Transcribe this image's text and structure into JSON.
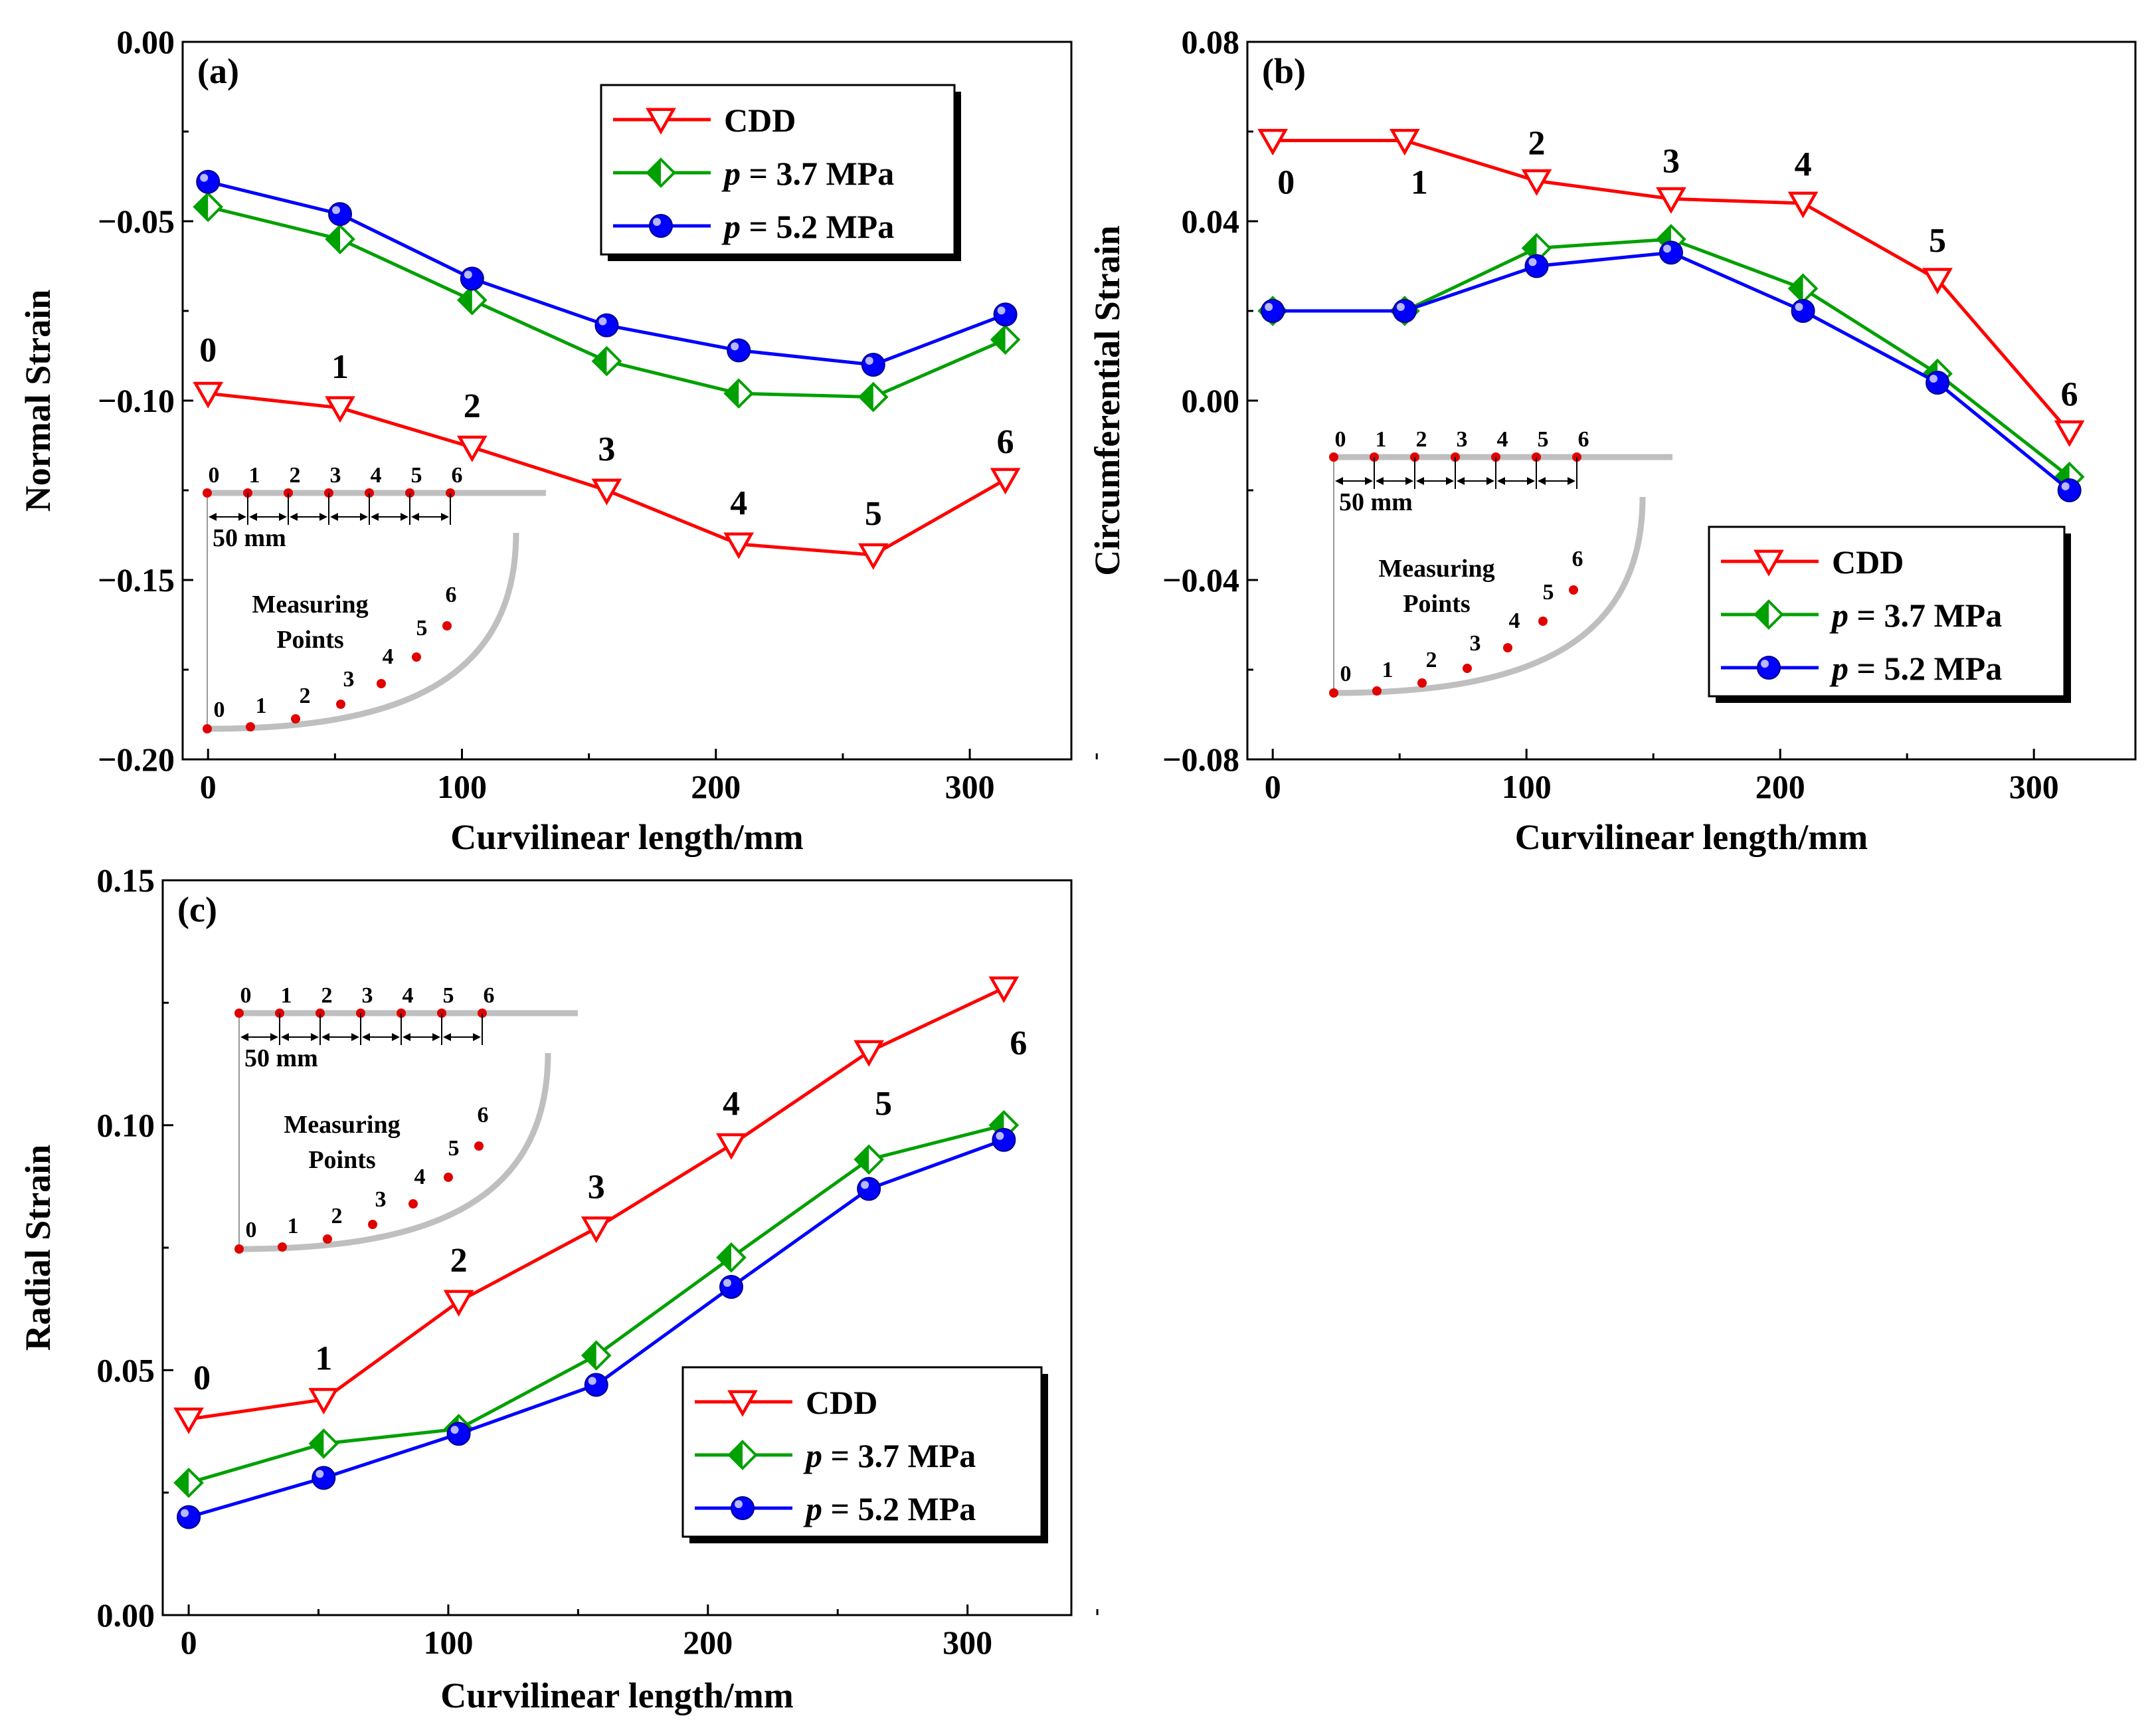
{
  "colors": {
    "cdd": "#ff0000",
    "p37": "#00a000",
    "p52": "#0000ff",
    "insetCurve": "#bfbfbf",
    "insetDot": "#e00000"
  },
  "chart_data": [
    {
      "type": "line",
      "panel": "(a)",
      "xlabel": "Curvilinear length/mm",
      "ylabel": "Normal Strain",
      "xlim": [
        -10,
        340
      ],
      "ylim": [
        -0.2,
        0.0
      ],
      "xticks": [
        0,
        100,
        200,
        300
      ],
      "xtick_labels": [
        "0",
        "100",
        "200",
        "300"
      ],
      "yticks": [
        -0.2,
        -0.15,
        -0.1,
        -0.05,
        0.0
      ],
      "ytick_labels": [
        "−0.20",
        "−0.15",
        "−0.10",
        "−0.05",
        "0.00"
      ],
      "legend_position": "top-right",
      "series": [
        {
          "name": "CDD",
          "key": "cdd",
          "marker": "triangle-down",
          "x": [
            0,
            52,
            104,
            157,
            209,
            262,
            314
          ],
          "y": [
            -0.098,
            -0.102,
            -0.113,
            -0.125,
            -0.14,
            -0.143,
            -0.122
          ]
        },
        {
          "name": "p = 3.7 MPa",
          "key": "p37",
          "marker": "diamond",
          "x": [
            0,
            52,
            104,
            157,
            209,
            262,
            314
          ],
          "y": [
            -0.046,
            -0.055,
            -0.072,
            -0.089,
            -0.098,
            -0.099,
            -0.083
          ]
        },
        {
          "name": "p = 5.2 MPa",
          "key": "p52",
          "marker": "circle",
          "x": [
            0,
            52,
            104,
            157,
            209,
            262,
            314
          ],
          "y": [
            -0.039,
            -0.048,
            -0.066,
            -0.079,
            -0.086,
            -0.09,
            -0.076
          ]
        }
      ],
      "point_labels": [
        "0",
        "1",
        "2",
        "3",
        "4",
        "5",
        "6"
      ]
    },
    {
      "type": "line",
      "panel": "(b)",
      "xlabel": "Curvilinear length/mm",
      "ylabel": "Circumferential Strain",
      "xlim": [
        -10,
        340
      ],
      "ylim": [
        -0.08,
        0.08
      ],
      "xticks": [
        0,
        100,
        200,
        300
      ],
      "xtick_labels": [
        "0",
        "100",
        "200",
        "300"
      ],
      "yticks": [
        -0.08,
        -0.04,
        0.0,
        0.04,
        0.08
      ],
      "ytick_labels": [
        "−0.08",
        "−0.04",
        "0.00",
        "0.04",
        "0.08"
      ],
      "legend_position": "bottom-right",
      "series": [
        {
          "name": "CDD",
          "key": "cdd",
          "marker": "triangle-down",
          "x": [
            0,
            52,
            104,
            157,
            209,
            262,
            314
          ],
          "y": [
            0.058,
            0.058,
            0.049,
            0.045,
            0.044,
            0.027,
            -0.007
          ]
        },
        {
          "name": "p = 3.7 MPa",
          "key": "p37",
          "marker": "diamond",
          "x": [
            0,
            52,
            104,
            157,
            209,
            262,
            314
          ],
          "y": [
            0.02,
            0.02,
            0.034,
            0.036,
            0.025,
            0.006,
            -0.017
          ]
        },
        {
          "name": "p = 5.2 MPa",
          "key": "p52",
          "marker": "circle",
          "x": [
            0,
            52,
            104,
            157,
            209,
            262,
            314
          ],
          "y": [
            0.02,
            0.02,
            0.03,
            0.033,
            0.02,
            0.004,
            -0.02
          ]
        }
      ],
      "point_labels": [
        "0",
        "1",
        "2",
        "3",
        "4",
        "5",
        "6"
      ]
    },
    {
      "type": "line",
      "panel": "(c)",
      "xlabel": "Curvilinear length/mm",
      "ylabel": "Radial Strain",
      "xlim": [
        -10,
        340
      ],
      "ylim": [
        0.0,
        0.15
      ],
      "xticks": [
        0,
        100,
        200,
        300
      ],
      "xtick_labels": [
        "0",
        "100",
        "200",
        "300"
      ],
      "yticks": [
        0.0,
        0.05,
        0.1,
        0.15
      ],
      "ytick_labels": [
        "0.00",
        "0.05",
        "0.10",
        "0.15"
      ],
      "legend_position": "bottom-right",
      "series": [
        {
          "name": "CDD",
          "key": "cdd",
          "marker": "triangle-down",
          "x": [
            0,
            52,
            104,
            157,
            209,
            262,
            314
          ],
          "y": [
            0.04,
            0.044,
            0.064,
            0.079,
            0.096,
            0.115,
            0.128
          ]
        },
        {
          "name": "p = 3.7 MPa",
          "key": "p37",
          "marker": "diamond",
          "x": [
            0,
            52,
            104,
            157,
            209,
            262,
            314
          ],
          "y": [
            0.027,
            0.035,
            0.038,
            0.053,
            0.073,
            0.093,
            0.1
          ]
        },
        {
          "name": "p = 5.2 MPa",
          "key": "p52",
          "marker": "circle",
          "x": [
            0,
            52,
            104,
            157,
            209,
            262,
            314
          ],
          "y": [
            0.02,
            0.028,
            0.037,
            0.047,
            0.067,
            0.087,
            0.097
          ]
        }
      ],
      "point_labels": [
        "0",
        "1",
        "2",
        "3",
        "4",
        "5",
        "6"
      ]
    }
  ],
  "legend": {
    "cdd": "CDD",
    "p_symbol": "p",
    "p37_value": " = 3.7 MPa",
    "p52_value": " = 5.2 MPa"
  },
  "inset": {
    "spacing_label": "50 mm",
    "caption_line1": "Measuring",
    "caption_line2": "Points",
    "point_numbers": [
      "0",
      "1",
      "2",
      "3",
      "4",
      "5",
      "6"
    ]
  }
}
